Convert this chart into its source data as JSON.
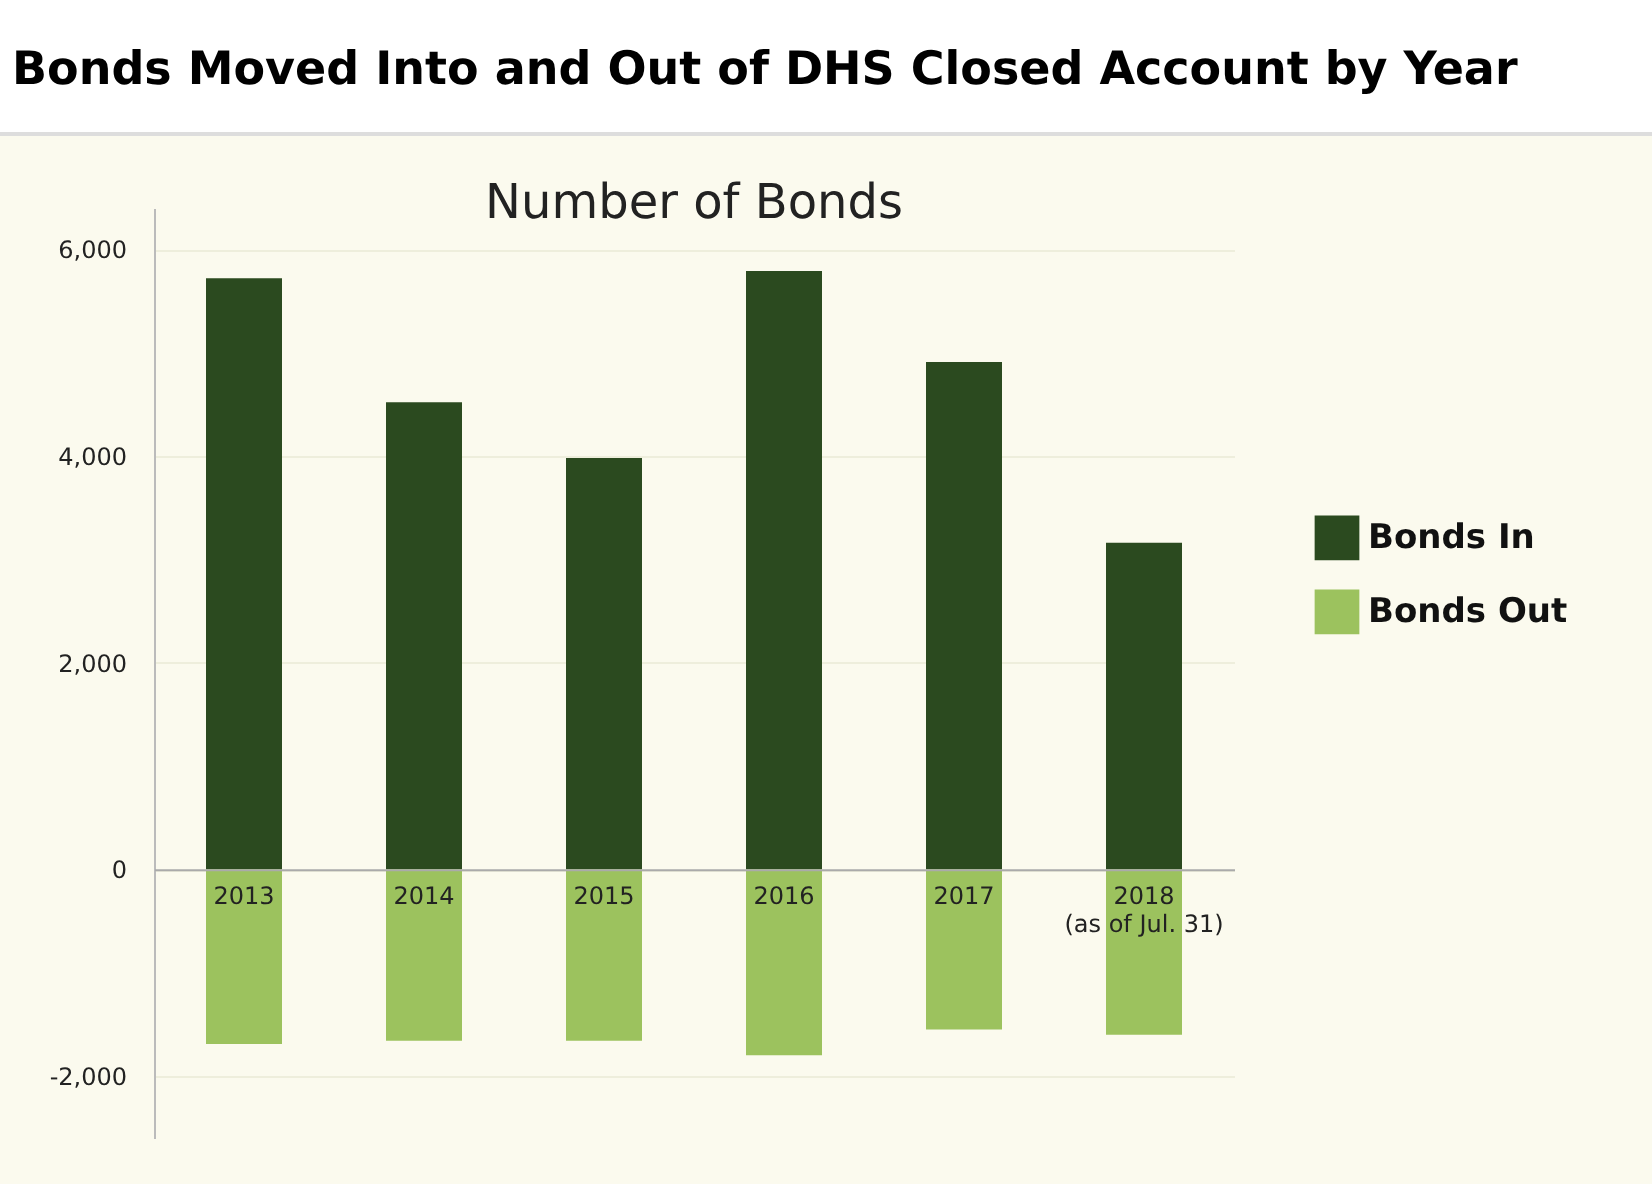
{
  "chart_data": {
    "type": "bar",
    "title": "Bonds Moved Into and Out of DHS Closed Account by Year",
    "subtitle": "Number of Bonds",
    "categories": [
      "2013",
      "2014",
      "2015",
      "2016",
      "2017",
      "2018\n(as of Jul. 31)"
    ],
    "series": [
      {
        "name": "Bonds In",
        "color": "#2b4a1f",
        "values": [
          5720,
          4520,
          3980,
          5790,
          4910,
          3160
        ]
      },
      {
        "name": "Bonds Out",
        "color": "#9cc25e",
        "values": [
          -1690,
          -1660,
          -1660,
          -1800,
          -1550,
          -1600
        ]
      }
    ],
    "stacked": true,
    "ylim": [
      -2600,
      6400
    ],
    "yticks": [
      {
        "value": -2000,
        "label": "-2,000"
      },
      0,
      {
        "value": 2000,
        "label": "2,000"
      },
      {
        "value": 4000,
        "label": "4,000"
      },
      {
        "value": 6000,
        "label": "6,000"
      }
    ],
    "grid": "y",
    "legend": "right"
  }
}
